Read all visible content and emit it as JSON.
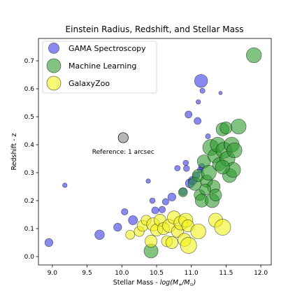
{
  "chart_data": {
    "type": "scatter",
    "title": "Einstein Radius, Redshift, and Stellar Mass",
    "xlabel": "Stellar Mass - log(M∗/M⊙)",
    "xlabel_parts": {
      "prefix": "Stellar Mass - ",
      "math": "log(M",
      "star": "∗",
      "slash": "/M",
      "sun": "⊙",
      "close": ")"
    },
    "ylabel": "Redshift - z",
    "xlim": [
      8.8,
      12.15
    ],
    "ylim": [
      -0.03,
      0.78
    ],
    "xticks": [
      "9.0",
      "9.5",
      "10.0",
      "10.5",
      "11.0",
      "11.5",
      "12.0"
    ],
    "xtick_values": [
      9.0,
      9.5,
      10.0,
      10.5,
      11.0,
      11.5,
      12.0
    ],
    "yticks": [
      "0.0",
      "0.1",
      "0.2",
      "0.3",
      "0.4",
      "0.5",
      "0.6",
      "0.7"
    ],
    "ytick_values": [
      0.0,
      0.1,
      0.2,
      0.3,
      0.4,
      0.5,
      0.6,
      0.7
    ],
    "grid": false,
    "legend_position": "top-left",
    "reference": {
      "label": "Reference: 1 arcsec",
      "x": 10.02,
      "y": 0.425,
      "einstein_radius_arcsec": 1.0,
      "color": "#999999"
    },
    "series": [
      {
        "name": "GAMA Spectroscopy",
        "color": "#3b3be8",
        "points": [
          {
            "x": 8.95,
            "y": 0.05,
            "r": 0.8
          },
          {
            "x": 9.18,
            "y": 0.255,
            "r": 0.45
          },
          {
            "x": 9.68,
            "y": 0.078,
            "r": 0.95
          },
          {
            "x": 9.94,
            "y": 0.105,
            "r": 0.8
          },
          {
            "x": 10.04,
            "y": 0.16,
            "r": 0.65
          },
          {
            "x": 10.16,
            "y": 0.13,
            "r": 0.9
          },
          {
            "x": 10.38,
            "y": 0.27,
            "r": 0.45
          },
          {
            "x": 10.44,
            "y": 0.2,
            "r": 0.55
          },
          {
            "x": 10.48,
            "y": 0.165,
            "r": 0.7
          },
          {
            "x": 10.58,
            "y": 0.168,
            "r": 0.65
          },
          {
            "x": 10.63,
            "y": 0.196,
            "r": 0.65
          },
          {
            "x": 10.72,
            "y": 0.213,
            "r": 0.8
          },
          {
            "x": 10.8,
            "y": 0.316,
            "r": 0.55
          },
          {
            "x": 10.88,
            "y": 0.232,
            "r": 0.75
          },
          {
            "x": 10.92,
            "y": 0.335,
            "r": 0.55
          },
          {
            "x": 10.93,
            "y": 0.315,
            "r": 0.6
          },
          {
            "x": 10.96,
            "y": 0.508,
            "r": 0.7
          },
          {
            "x": 10.98,
            "y": 0.262,
            "r": 0.9
          },
          {
            "x": 11.02,
            "y": 0.272,
            "r": 0.85
          },
          {
            "x": 11.07,
            "y": 0.29,
            "r": 0.7
          },
          {
            "x": 11.09,
            "y": 0.485,
            "r": 0.7
          },
          {
            "x": 11.1,
            "y": 0.553,
            "r": 0.45
          },
          {
            "x": 11.14,
            "y": 0.628,
            "r": 1.3
          },
          {
            "x": 11.16,
            "y": 0.593,
            "r": 0.5
          },
          {
            "x": 11.15,
            "y": 0.322,
            "r": 0.6
          },
          {
            "x": 11.24,
            "y": 0.43,
            "r": 0.5
          },
          {
            "x": 11.42,
            "y": 0.585,
            "r": 0.35
          },
          {
            "x": 11.13,
            "y": 0.31,
            "r": 0.6
          }
        ]
      },
      {
        "name": "Machine Learning",
        "color": "#2e9b2e",
        "points": [
          {
            "x": 10.42,
            "y": 0.02,
            "r": 1.4
          },
          {
            "x": 10.88,
            "y": 0.23,
            "r": 0.9
          },
          {
            "x": 11.05,
            "y": 0.26,
            "r": 1.3
          },
          {
            "x": 11.1,
            "y": 0.29,
            "r": 1.2
          },
          {
            "x": 11.12,
            "y": 0.22,
            "r": 1.1
          },
          {
            "x": 11.15,
            "y": 0.2,
            "r": 1.3
          },
          {
            "x": 11.18,
            "y": 0.34,
            "r": 1.3
          },
          {
            "x": 11.22,
            "y": 0.27,
            "r": 1.2
          },
          {
            "x": 11.25,
            "y": 0.3,
            "r": 1.5
          },
          {
            "x": 11.28,
            "y": 0.39,
            "r": 1.6
          },
          {
            "x": 11.3,
            "y": 0.2,
            "r": 1.4
          },
          {
            "x": 11.32,
            "y": 0.25,
            "r": 1.3
          },
          {
            "x": 11.34,
            "y": 0.36,
            "r": 1.4
          },
          {
            "x": 11.38,
            "y": 0.4,
            "r": 1.5
          },
          {
            "x": 11.4,
            "y": 0.33,
            "r": 1.3
          },
          {
            "x": 11.45,
            "y": 0.455,
            "r": 1.3
          },
          {
            "x": 11.47,
            "y": 0.38,
            "r": 1.6
          },
          {
            "x": 11.5,
            "y": 0.46,
            "r": 1.2
          },
          {
            "x": 11.52,
            "y": 0.35,
            "r": 1.5
          },
          {
            "x": 11.55,
            "y": 0.29,
            "r": 1.4
          },
          {
            "x": 11.58,
            "y": 0.4,
            "r": 1.5
          },
          {
            "x": 11.6,
            "y": 0.31,
            "r": 1.5
          },
          {
            "x": 11.62,
            "y": 0.38,
            "r": 1.5
          },
          {
            "x": 11.68,
            "y": 0.465,
            "r": 1.5
          },
          {
            "x": 11.9,
            "y": 0.72,
            "r": 1.5
          },
          {
            "x": 11.45,
            "y": 0.32,
            "r": 1.4
          },
          {
            "x": 11.35,
            "y": 0.22,
            "r": 1.2
          },
          {
            "x": 11.2,
            "y": 0.24,
            "r": 1.1
          }
        ]
      },
      {
        "name": "GalaxyZoo",
        "color": "#f2f21a",
        "points": [
          {
            "x": 10.12,
            "y": 0.078,
            "r": 0.9
          },
          {
            "x": 10.25,
            "y": 0.09,
            "r": 1.0
          },
          {
            "x": 10.3,
            "y": 0.11,
            "r": 1.1
          },
          {
            "x": 10.35,
            "y": 0.13,
            "r": 1.0
          },
          {
            "x": 10.42,
            "y": 0.055,
            "r": 1.2
          },
          {
            "x": 10.45,
            "y": 0.115,
            "r": 1.3
          },
          {
            "x": 10.5,
            "y": 0.095,
            "r": 1.2
          },
          {
            "x": 10.55,
            "y": 0.13,
            "r": 1.2
          },
          {
            "x": 10.6,
            "y": 0.1,
            "r": 1.2
          },
          {
            "x": 10.65,
            "y": 0.055,
            "r": 1.1
          },
          {
            "x": 10.68,
            "y": 0.11,
            "r": 1.3
          },
          {
            "x": 10.72,
            "y": 0.05,
            "r": 1.2
          },
          {
            "x": 10.75,
            "y": 0.14,
            "r": 1.3
          },
          {
            "x": 10.8,
            "y": 0.09,
            "r": 1.2
          },
          {
            "x": 10.85,
            "y": 0.12,
            "r": 1.4
          },
          {
            "x": 10.9,
            "y": 0.06,
            "r": 1.3
          },
          {
            "x": 10.92,
            "y": 0.13,
            "r": 1.4
          },
          {
            "x": 10.95,
            "y": 0.11,
            "r": 1.2
          },
          {
            "x": 10.96,
            "y": 0.04,
            "r": 1.6
          },
          {
            "x": 11.1,
            "y": 0.09,
            "r": 1.5
          },
          {
            "x": 11.35,
            "y": 0.13,
            "r": 1.4
          },
          {
            "x": 11.45,
            "y": 0.105,
            "r": 1.6
          }
        ]
      }
    ]
  }
}
